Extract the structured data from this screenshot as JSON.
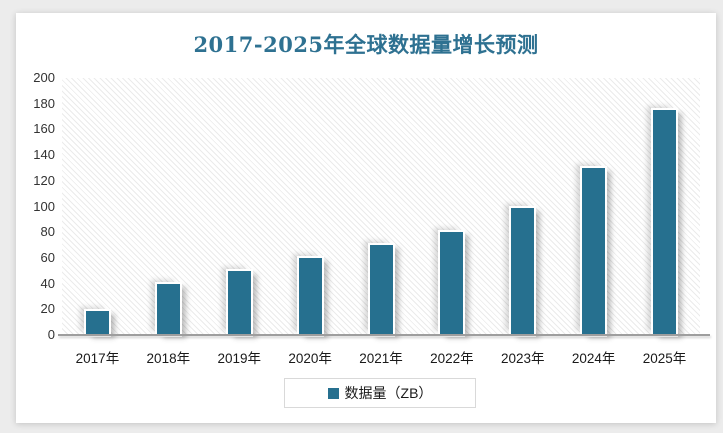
{
  "page": {
    "background_color": "#ececec",
    "card_background_color": "#ffffff"
  },
  "chart_data": {
    "type": "bar",
    "title": "2017-2025年全球数据量增长预测",
    "title_color": "#2e7191",
    "bar_color": "#26708f",
    "categories": [
      "2017年",
      "2018年",
      "2019年",
      "2020年",
      "2021年",
      "2022年",
      "2023年",
      "2024年",
      "2025年"
    ],
    "series": [
      {
        "name": "数据量（ZB）",
        "values": [
          19,
          40,
          50,
          60,
          70,
          80,
          99,
          130,
          175
        ]
      }
    ],
    "xlabel": "",
    "ylabel": "",
    "ylim": [
      0,
      200
    ],
    "ytick_step": 20,
    "ytick_labels": [
      "200",
      "180",
      "160",
      "140",
      "120",
      "100",
      "80",
      "60",
      "40",
      "20",
      "0"
    ],
    "grid": false,
    "plot_background": "diagonal-hatch",
    "legend": {
      "position": "bottom",
      "label": "数据量（ZB）",
      "swatch_color": "#26708f"
    }
  }
}
